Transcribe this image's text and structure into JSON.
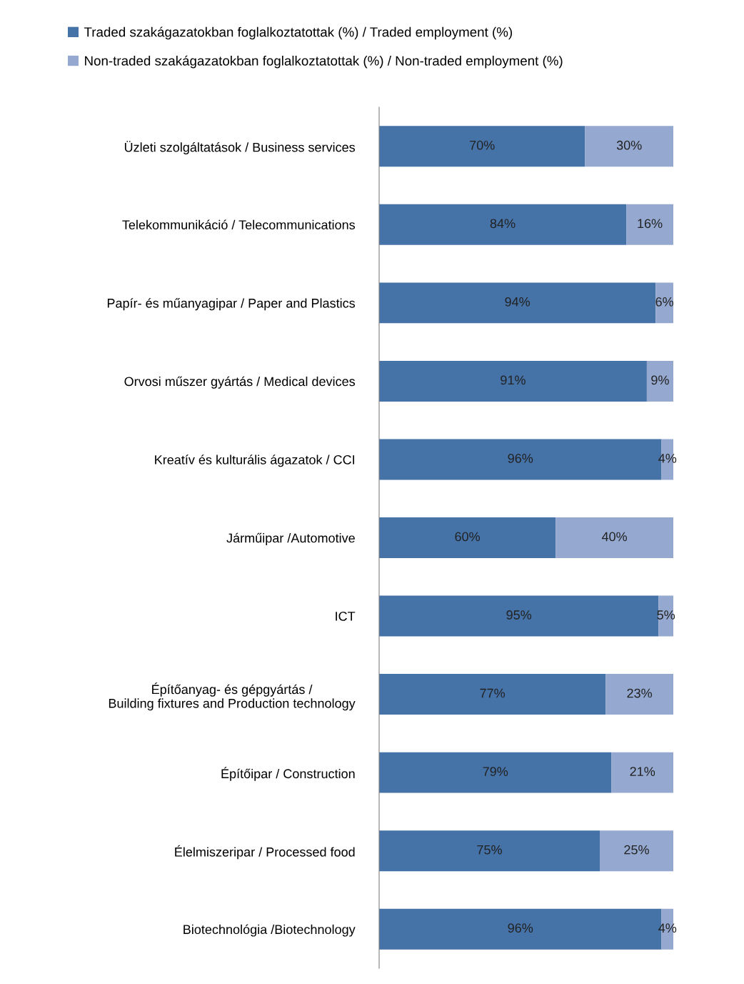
{
  "chart_data": {
    "type": "bar",
    "orientation": "horizontal",
    "stacked": true,
    "legend": "top",
    "tick_labels": "y",
    "categories": [
      "Üzleti szolgáltatások / Business services",
      "Telekommunikáció / Telecommunications",
      "Papír- és műanyagipar / Paper and Plastics",
      "Orvosi műszer gyártás / Medical devices",
      "Kreatív és kulturális ágazatok / CCI",
      "Járműipar /Automotive",
      "ICT",
      "Építőanyag- és gépgyártás /\nBuilding fixtures and Production technology",
      "Építőipar / Construction",
      "Élelmiszeripar / Processed food",
      "Biotechnológia /Biotechnology"
    ],
    "series": [
      {
        "name": "Traded szakágazatokban foglalkoztatottak (%) / Traded employment (%)",
        "color": "#4572a7",
        "values": [
          70,
          84,
          94,
          91,
          96,
          60,
          95,
          77,
          79,
          75,
          96
        ],
        "value_labels": [
          "70%",
          "84%",
          "94%",
          "91%",
          "96%",
          "60%",
          "95%",
          "77%",
          "79%",
          "75%",
          "96%"
        ]
      },
      {
        "name": "Non-traded szakágazatokban foglalkoztatottak (%) / Non-traded employment (%)",
        "color": "#95a9d0",
        "values": [
          30,
          16,
          6,
          9,
          4,
          40,
          5,
          23,
          21,
          25,
          4
        ],
        "value_labels": [
          "30%",
          "16%",
          "6%",
          "9%",
          "4%",
          "40%",
          "5%",
          "23%",
          "21%",
          "25%",
          "4%"
        ]
      }
    ]
  }
}
